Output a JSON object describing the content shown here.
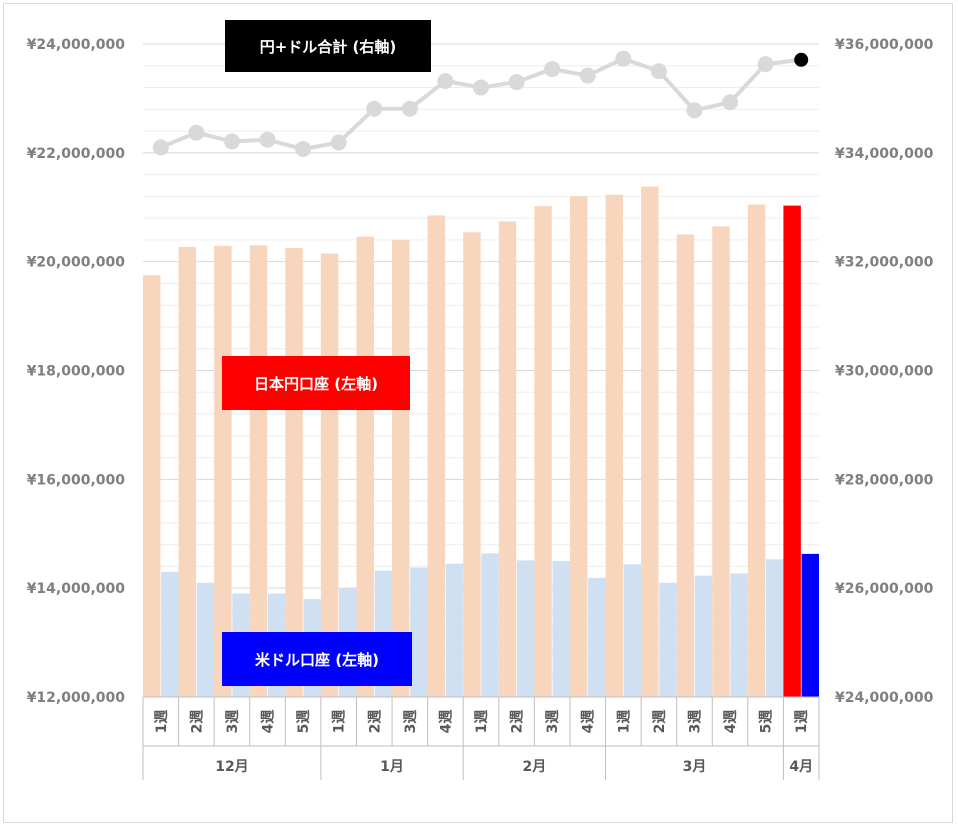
{
  "chart_data": {
    "type": "bar+line",
    "categories": [
      "1週",
      "2週",
      "3週",
      "4週",
      "5週",
      "1週",
      "2週",
      "3週",
      "4週",
      "1週",
      "2週",
      "3週",
      "4週",
      "1週",
      "2週",
      "3週",
      "4週",
      "5週",
      "1週"
    ],
    "groups": [
      {
        "label": "12月",
        "count": 5
      },
      {
        "label": "1月",
        "count": 4
      },
      {
        "label": "2月",
        "count": 4
      },
      {
        "label": "3月",
        "count": 5
      },
      {
        "label": "4月",
        "count": 1
      }
    ],
    "series": [
      {
        "name": "日本円口座 (左軸)",
        "axis": "left",
        "type": "bar",
        "values": [
          19750000,
          20270000,
          20290000,
          20300000,
          20250000,
          20150000,
          20460000,
          20400000,
          20850000,
          20540000,
          20740000,
          21020000,
          21200000,
          21230000,
          21380000,
          20500000,
          20650000,
          21050000,
          21030000
        ],
        "color": "#f8d5bd",
        "highlight": "#ff0000"
      },
      {
        "name": "米ドル口座 (左軸)",
        "axis": "left",
        "type": "bar",
        "values": [
          14300000,
          14100000,
          13900000,
          13900000,
          13800000,
          14000000,
          14320000,
          14380000,
          14450000,
          14640000,
          14510000,
          14500000,
          14190000,
          14440000,
          14100000,
          14230000,
          14270000,
          14530000,
          14630000
        ],
        "color": "#cfe0f3",
        "highlight": "#0000ff"
      },
      {
        "name": "円+ドル合計 (右軸)",
        "axis": "right",
        "type": "line",
        "values": [
          34100000,
          34370000,
          34210000,
          34240000,
          34070000,
          34190000,
          34810000,
          34810000,
          35320000,
          35200000,
          35300000,
          35540000,
          35420000,
          35730000,
          35500000,
          34780000,
          34930000,
          35630000,
          35710000
        ],
        "color": "#d9d9d9",
        "highlight": "#000000"
      }
    ],
    "left_axis": {
      "min": 12000000,
      "max": 24000000,
      "step": 2000000,
      "tick_labels": [
        "¥12,000,000",
        "¥14,000,000",
        "¥16,000,000",
        "¥18,000,000",
        "¥20,000,000",
        "¥22,000,000",
        "¥24,000,000"
      ]
    },
    "right_axis": {
      "min": 24000000,
      "max": 36000000,
      "step": 2000000,
      "tick_labels": [
        "¥24,000,000",
        "¥26,000,000",
        "¥28,000,000",
        "¥30,000,000",
        "¥32,000,000",
        "¥34,000,000",
        "¥36,000,000"
      ]
    },
    "labels": {
      "total": {
        "text": "円+ドル合計 (右軸)",
        "bg": "#000000"
      },
      "jpy": {
        "text": "日本円口座 (左軸)",
        "bg": "#ff0000"
      },
      "usd": {
        "text": "米ドル口座 (左軸)",
        "bg": "#0000ff"
      }
    },
    "grid": true,
    "highlight_last": true
  }
}
